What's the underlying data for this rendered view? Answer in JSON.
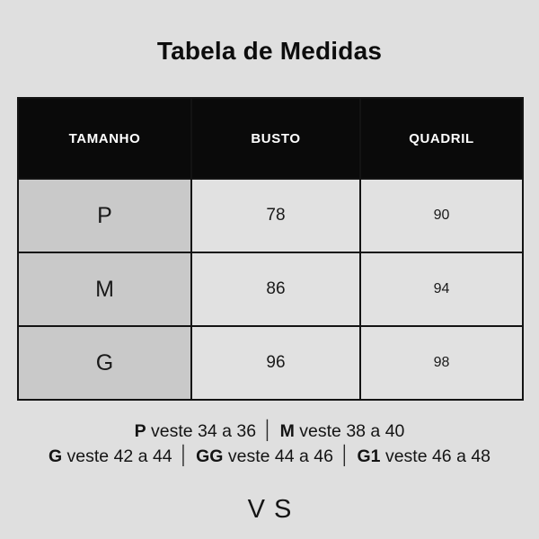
{
  "page": {
    "background_color": "#dfdfdf"
  },
  "title": "Tabela de Medidas",
  "table": {
    "headers": [
      "TAMANHO",
      "BUSTO",
      "QUADRIL"
    ],
    "rows": [
      {
        "size": "P",
        "busto": "78",
        "quadril": "90"
      },
      {
        "size": "M",
        "busto": "86",
        "quadril": "94"
      },
      {
        "size": "G",
        "busto": "96",
        "quadril": "98"
      }
    ],
    "colors": {
      "header_bg": "#0a0a0a",
      "header_text": "#ffffff",
      "size_column_bg": "#c9c9c9",
      "cell_bg": "#e1e1e1",
      "border": "#131313"
    }
  },
  "notes": {
    "separator": "│",
    "line1": [
      {
        "code": "P",
        "text": "veste 34 a 36"
      },
      {
        "code": "M",
        "text": "veste 38 a 40"
      }
    ],
    "line2": [
      {
        "code": "G",
        "text": "veste 42 a 44"
      },
      {
        "code": "GG",
        "text": "veste 44 a 46"
      },
      {
        "code": "G1",
        "text": "veste 46 a 48"
      }
    ]
  },
  "logo": {
    "text": "VS"
  }
}
